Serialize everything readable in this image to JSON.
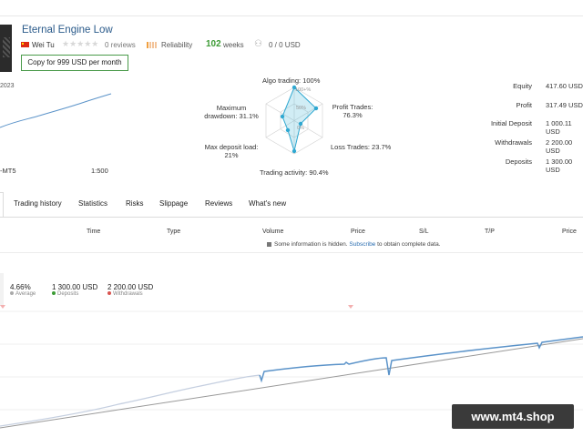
{
  "signal": {
    "title": "Eternal Engine Low",
    "author": "Wei Tu",
    "reviews": "0 reviews",
    "reliability": "Reliability",
    "weeks_num": "102",
    "weeks_lbl": "weeks",
    "subscribers": "0 / 0 USD",
    "copy_label": "Copy for 999 USD per month",
    "year": "2023",
    "platform": "-MT5",
    "leverage": "1:500",
    "colors": {
      "title": "#2a5a8a",
      "weeks": "#3c9b35",
      "chart_line": "#5b93c9",
      "radar": "#49b6d6"
    }
  },
  "radar": {
    "algo": "Algo trading: 100%",
    "profit": "Profit Trades:",
    "profit_val": "76.3%",
    "loss": "Loss Trades: 23.7%",
    "activity": "Trading activity: 90.4%",
    "deposit_load": "Max deposit load:",
    "deposit_load_val": "21%",
    "drawdown": "Maximum",
    "drawdown2": "drawdown: 31.1%",
    "ring100": "100+%",
    "ring50": "50%",
    "ring0": "0%",
    "values": {
      "algo": 100,
      "profit": 76.3,
      "loss": 23.7,
      "activity": 90.4,
      "deposit_load": 21,
      "drawdown": 31.1
    }
  },
  "stats": [
    {
      "label": "Equity",
      "value": "417.60 USD"
    },
    {
      "label": "Profit",
      "value": "317.49 USD"
    },
    {
      "label": "Initial Deposit",
      "value": "1 000.11 USD"
    },
    {
      "label": "Withdrawals",
      "value": "2 200.00 USD"
    },
    {
      "label": "Deposits",
      "value": "1 300.00 USD"
    }
  ],
  "tabs": [
    "Trading history",
    "Statistics",
    "Risks",
    "Slippage",
    "Reviews",
    "What's new"
  ],
  "table": {
    "headers": [
      "Time",
      "Type",
      "Volume",
      "Price",
      "S/L",
      "T/P",
      "Price"
    ],
    "note_pre": "Some information is hidden.",
    "note_link": "Subscribe",
    "note_post": "to obtain complete data."
  },
  "summary": [
    {
      "value": "4.66%",
      "label": "Average"
    },
    {
      "value": "1 300.00 USD",
      "label": "Deposits"
    },
    {
      "value": "2 200.00 USD",
      "label": "Withdrawals"
    }
  ],
  "watermark": "www.mt4.shop"
}
